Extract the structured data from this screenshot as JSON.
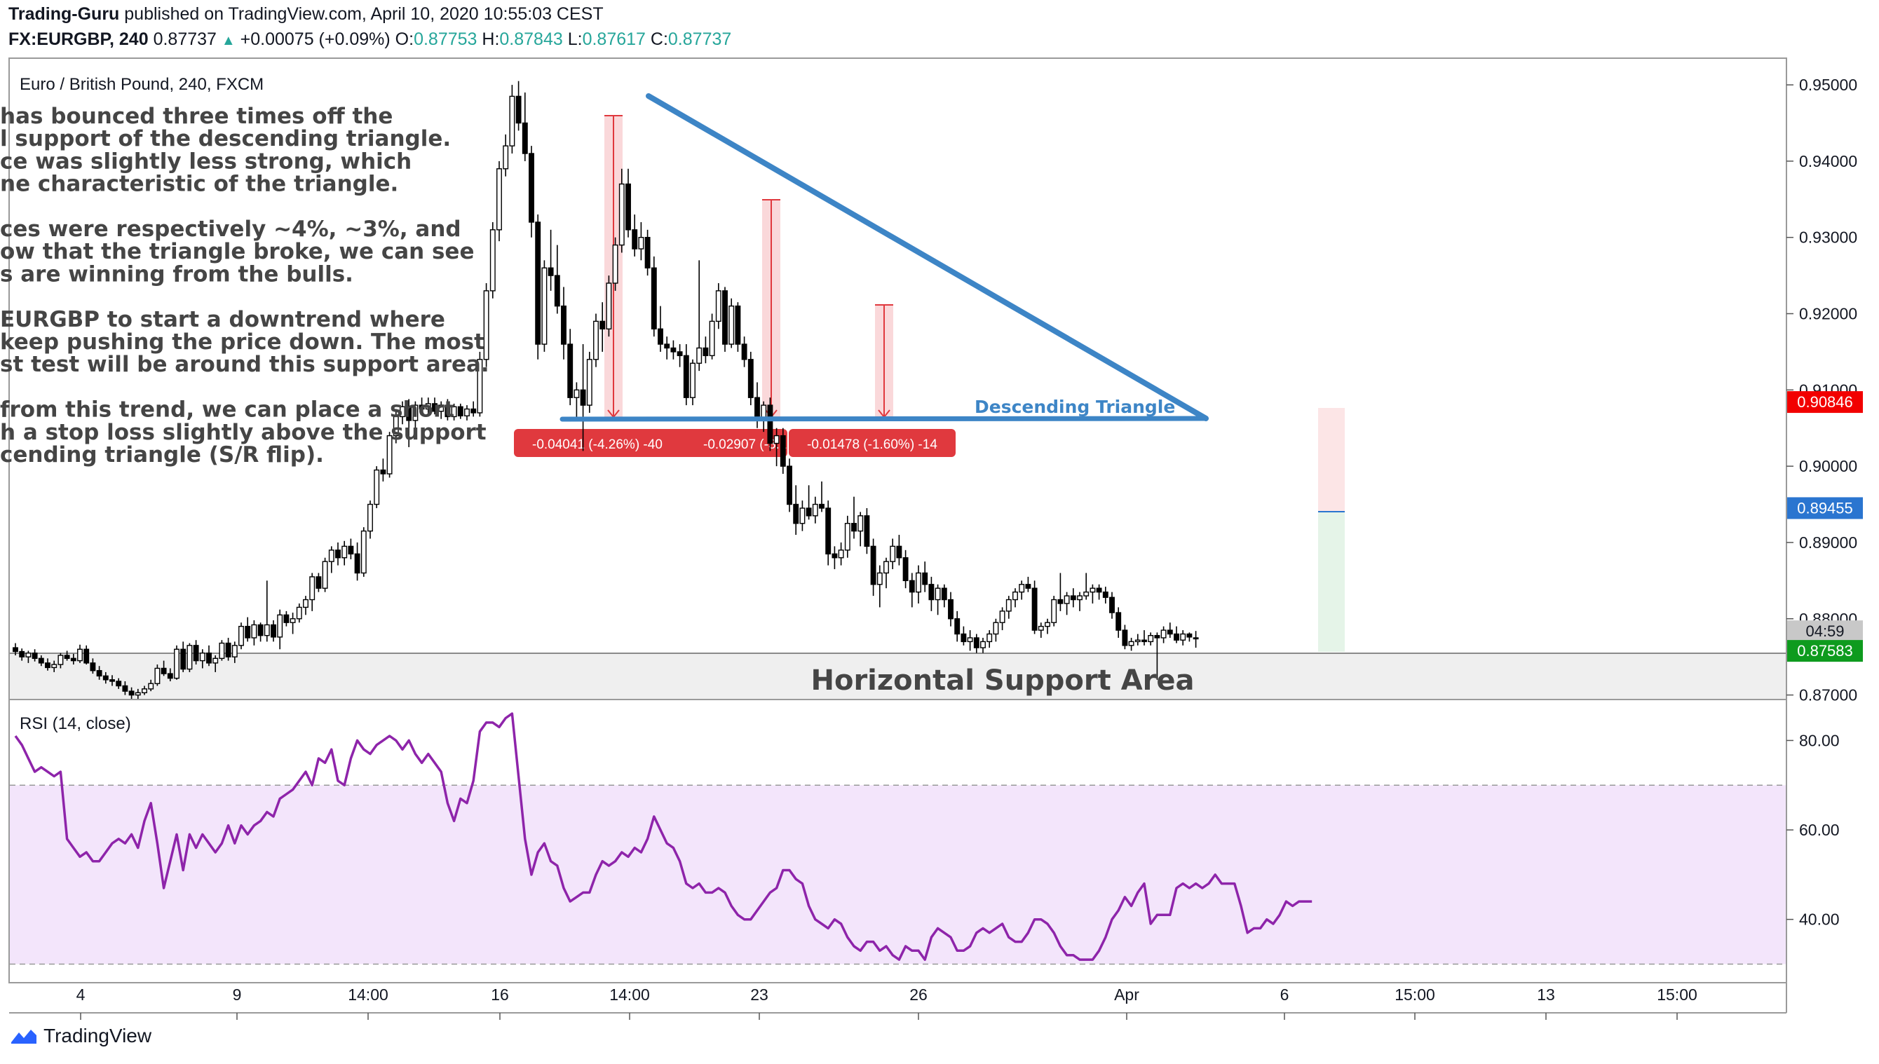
{
  "header": {
    "author": "Trading-Guru",
    "published_text": "published on TradingView.com, April 10, 2020 10:55:03 CEST",
    "symbol": "FX:EURGBP, 240",
    "last": "0.87737",
    "change": "+0.00075 (+0.09%)",
    "o_label": "O:",
    "o_value": "0.87753",
    "h_label": "H:",
    "h_value": "0.87843",
    "l_label": "L:",
    "l_value": "0.87617",
    "c_label": "C:",
    "c_value": "0.87737"
  },
  "pane_title": "Euro / British Pound, 240, FXCM",
  "rsi_title": "RSI (14, close)",
  "footer": {
    "brand": "TradingView"
  },
  "annotation_lines": [
    "has bounced three times off the",
    "l support of the descending triangle.",
    "ce was slightly less strong, which",
    "ne characteristic of the triangle.",
    "",
    "ces were respectively ~4%, ~3%, and",
    "ow that the triangle broke, we can see",
    "s are winning from the bulls.",
    "",
    "EURGBP to start a downtrend where",
    " keep pushing the price down. The most",
    "st test will be around this support area.",
    "",
    "from this trend, we can place a short",
    "h a stop loss slightly above the support",
    "cending triangle (S/R flip)."
  ],
  "drawings": {
    "triangle_label": "Descending Triangle",
    "support_label": "Horizontal Support Area",
    "measure_labels": [
      "-0.04041 (-4.26%) -40",
      "-0.02907 (-3.1",
      "-0.01478 (-1.60%) -14"
    ]
  },
  "colors": {
    "up": "#ffffff",
    "down": "#000000",
    "wick": "#000000",
    "triangle": "#3d85c6",
    "measure_red": "#e0393e",
    "rsi": "#8e24aa",
    "rsi_band": "#f3e5fb",
    "price_red": "#f20000",
    "price_blue": "#2a75d0",
    "price_green": "#0e9b1e"
  },
  "chart_data": {
    "type": "candlestick",
    "price_axis": {
      "ticks": [
        "0.95000",
        "0.94000",
        "0.93000",
        "0.92000",
        "0.91000",
        "0.90000",
        "0.89000",
        "0.88000",
        "0.87000"
      ],
      "ylim": [
        0.8695,
        0.9535
      ]
    },
    "x_ticks": [
      "4",
      "9",
      "14:00",
      "16",
      "14:00",
      "23",
      "26",
      "Apr",
      "6",
      "15:00",
      "13",
      "15:00"
    ],
    "price_labels": [
      {
        "text": "0.90846",
        "value": 0.90846,
        "color": "#f20000"
      },
      {
        "text": "0.89455",
        "value": 0.89455,
        "color": "#2a75d0"
      },
      {
        "text": "04:59",
        "value": 0.8784,
        "color": "#c8c8c8"
      },
      {
        "text": "0.87583",
        "value": 0.87583,
        "color": "#0e9b1e"
      }
    ],
    "candles": [
      [
        0.8762,
        0.8768,
        0.8752,
        0.8757
      ],
      [
        0.8757,
        0.8761,
        0.8745,
        0.875
      ],
      [
        0.875,
        0.8758,
        0.8742,
        0.8755
      ],
      [
        0.8755,
        0.876,
        0.8744,
        0.8748
      ],
      [
        0.8748,
        0.8752,
        0.8738,
        0.8742
      ],
      [
        0.8742,
        0.8748,
        0.8732,
        0.8736
      ],
      [
        0.8736,
        0.8745,
        0.873,
        0.874
      ],
      [
        0.874,
        0.8755,
        0.8735,
        0.8752
      ],
      [
        0.8752,
        0.8758,
        0.8745,
        0.8748
      ],
      [
        0.8748,
        0.8754,
        0.874,
        0.8745
      ],
      [
        0.8745,
        0.8766,
        0.8742,
        0.876
      ],
      [
        0.876,
        0.8765,
        0.874,
        0.8742
      ],
      [
        0.8742,
        0.8748,
        0.8728,
        0.8732
      ],
      [
        0.8732,
        0.8738,
        0.872,
        0.8725
      ],
      [
        0.8725,
        0.873,
        0.8715,
        0.872
      ],
      [
        0.872,
        0.8726,
        0.8712,
        0.8718
      ],
      [
        0.8718,
        0.8722,
        0.8708,
        0.8712
      ],
      [
        0.8712,
        0.8718,
        0.87,
        0.8705
      ],
      [
        0.8705,
        0.871,
        0.8695,
        0.87
      ],
      [
        0.87,
        0.8708,
        0.8692,
        0.8703
      ],
      [
        0.8703,
        0.8712,
        0.87,
        0.8708
      ],
      [
        0.8708,
        0.872,
        0.8705,
        0.8715
      ],
      [
        0.8715,
        0.874,
        0.8712,
        0.8735
      ],
      [
        0.8735,
        0.8745,
        0.8725,
        0.8728
      ],
      [
        0.8728,
        0.8735,
        0.8718,
        0.8722
      ],
      [
        0.8722,
        0.8765,
        0.872,
        0.876
      ],
      [
        0.876,
        0.877,
        0.873,
        0.8734
      ],
      [
        0.8734,
        0.8768,
        0.873,
        0.8765
      ],
      [
        0.8765,
        0.8772,
        0.874,
        0.8745
      ],
      [
        0.8745,
        0.876,
        0.8735,
        0.8755
      ],
      [
        0.8755,
        0.8765,
        0.8738,
        0.8742
      ],
      [
        0.8742,
        0.8752,
        0.873,
        0.8748
      ],
      [
        0.8748,
        0.8772,
        0.8745,
        0.8768
      ],
      [
        0.8768,
        0.8775,
        0.8745,
        0.875
      ],
      [
        0.875,
        0.877,
        0.8742,
        0.8765
      ],
      [
        0.8765,
        0.8795,
        0.876,
        0.879
      ],
      [
        0.879,
        0.8802,
        0.877,
        0.8775
      ],
      [
        0.8775,
        0.8798,
        0.8765,
        0.8792
      ],
      [
        0.8792,
        0.8795,
        0.877,
        0.8778
      ],
      [
        0.8778,
        0.885,
        0.877,
        0.8792
      ],
      [
        0.8792,
        0.8798,
        0.877,
        0.8776
      ],
      [
        0.8776,
        0.8812,
        0.876,
        0.8805
      ],
      [
        0.8805,
        0.881,
        0.879,
        0.8795
      ],
      [
        0.8795,
        0.8808,
        0.878,
        0.88
      ],
      [
        0.88,
        0.882,
        0.8795,
        0.8815
      ],
      [
        0.8815,
        0.883,
        0.8805,
        0.8825
      ],
      [
        0.8825,
        0.886,
        0.881,
        0.8855
      ],
      [
        0.8855,
        0.886,
        0.8835,
        0.884
      ],
      [
        0.884,
        0.888,
        0.8835,
        0.8875
      ],
      [
        0.8875,
        0.8895,
        0.886,
        0.889
      ],
      [
        0.889,
        0.89,
        0.887,
        0.888
      ],
      [
        0.888,
        0.8902,
        0.887,
        0.8895
      ],
      [
        0.8895,
        0.8905,
        0.8878,
        0.8885
      ],
      [
        0.8885,
        0.89,
        0.885,
        0.886
      ],
      [
        0.886,
        0.892,
        0.8855,
        0.8915
      ],
      [
        0.8915,
        0.8955,
        0.8905,
        0.895
      ],
      [
        0.895,
        0.9,
        0.8945,
        0.8995
      ],
      [
        0.8995,
        0.901,
        0.898,
        0.899
      ],
      [
        0.899,
        0.9045,
        0.8985,
        0.904
      ],
      [
        0.904,
        0.9075,
        0.903,
        0.9065
      ],
      [
        0.9065,
        0.9085,
        0.9055,
        0.9078
      ],
      [
        0.9078,
        0.9088,
        0.9025,
        0.906
      ],
      [
        0.906,
        0.9085,
        0.905,
        0.908
      ],
      [
        0.908,
        0.909,
        0.907,
        0.9075
      ],
      [
        0.9075,
        0.909,
        0.9065,
        0.9082
      ],
      [
        0.9082,
        0.909,
        0.9068,
        0.9072
      ],
      [
        0.9072,
        0.9085,
        0.9062,
        0.908
      ],
      [
        0.908,
        0.9088,
        0.906,
        0.9065
      ],
      [
        0.9065,
        0.9082,
        0.906,
        0.9078
      ],
      [
        0.9078,
        0.9082,
        0.9062,
        0.9066
      ],
      [
        0.9066,
        0.908,
        0.906,
        0.9075
      ],
      [
        0.9075,
        0.9085,
        0.9065,
        0.907
      ],
      [
        0.907,
        0.915,
        0.9065,
        0.914
      ],
      [
        0.914,
        0.924,
        0.913,
        0.923
      ],
      [
        0.923,
        0.932,
        0.922,
        0.931
      ],
      [
        0.931,
        0.94,
        0.9295,
        0.939
      ],
      [
        0.939,
        0.9435,
        0.938,
        0.942
      ],
      [
        0.942,
        0.95,
        0.941,
        0.9485
      ],
      [
        0.9485,
        0.9505,
        0.944,
        0.945
      ],
      [
        0.945,
        0.949,
        0.94,
        0.941
      ],
      [
        0.941,
        0.942,
        0.93,
        0.932
      ],
      [
        0.932,
        0.933,
        0.914,
        0.916
      ],
      [
        0.916,
        0.927,
        0.915,
        0.926
      ],
      [
        0.926,
        0.931,
        0.923,
        0.925
      ],
      [
        0.925,
        0.929,
        0.92,
        0.921
      ],
      [
        0.921,
        0.9235,
        0.914,
        0.916
      ],
      [
        0.916,
        0.918,
        0.908,
        0.909
      ],
      [
        0.909,
        0.911,
        0.906,
        0.91
      ],
      [
        0.91,
        0.916,
        0.902,
        0.908
      ],
      [
        0.908,
        0.915,
        0.907,
        0.914
      ],
      [
        0.914,
        0.92,
        0.913,
        0.919
      ],
      [
        0.919,
        0.9215,
        0.915,
        0.918
      ],
      [
        0.918,
        0.925,
        0.917,
        0.924
      ],
      [
        0.924,
        0.93,
        0.923,
        0.929
      ],
      [
        0.929,
        0.939,
        0.928,
        0.937
      ],
      [
        0.937,
        0.939,
        0.93,
        0.931
      ],
      [
        0.931,
        0.933,
        0.9275,
        0.9285
      ],
      [
        0.9285,
        0.932,
        0.927,
        0.93
      ],
      [
        0.93,
        0.931,
        0.925,
        0.926
      ],
      [
        0.926,
        0.9275,
        0.917,
        0.918
      ],
      [
        0.918,
        0.921,
        0.915,
        0.916
      ],
      [
        0.916,
        0.917,
        0.914,
        0.9155
      ],
      [
        0.9155,
        0.9165,
        0.914,
        0.915
      ],
      [
        0.915,
        0.916,
        0.913,
        0.9145
      ],
      [
        0.9145,
        0.916,
        0.908,
        0.909
      ],
      [
        0.909,
        0.914,
        0.908,
        0.9135
      ],
      [
        0.9135,
        0.927,
        0.9125,
        0.9155
      ],
      [
        0.9155,
        0.917,
        0.9135,
        0.9145
      ],
      [
        0.9145,
        0.92,
        0.914,
        0.919
      ],
      [
        0.919,
        0.924,
        0.918,
        0.923
      ],
      [
        0.923,
        0.9235,
        0.915,
        0.916
      ],
      [
        0.916,
        0.922,
        0.9155,
        0.921
      ],
      [
        0.921,
        0.9215,
        0.915,
        0.916
      ],
      [
        0.916,
        0.917,
        0.913,
        0.914
      ],
      [
        0.914,
        0.915,
        0.908,
        0.909
      ],
      [
        0.909,
        0.911,
        0.905,
        0.906
      ],
      [
        0.906,
        0.9085,
        0.9045,
        0.908
      ],
      [
        0.908,
        0.909,
        0.902,
        0.903
      ],
      [
        0.903,
        0.905,
        0.9,
        0.904
      ],
      [
        0.904,
        0.905,
        0.899,
        0.9
      ],
      [
        0.9,
        0.901,
        0.894,
        0.895
      ],
      [
        0.895,
        0.8975,
        0.891,
        0.8925
      ],
      [
        0.8925,
        0.8955,
        0.8915,
        0.8945
      ],
      [
        0.8945,
        0.8975,
        0.893,
        0.8935
      ],
      [
        0.8935,
        0.896,
        0.8925,
        0.895
      ],
      [
        0.895,
        0.898,
        0.894,
        0.8945
      ],
      [
        0.8945,
        0.8955,
        0.887,
        0.8885
      ],
      [
        0.8885,
        0.8895,
        0.8865,
        0.888
      ],
      [
        0.888,
        0.89,
        0.887,
        0.889
      ],
      [
        0.889,
        0.8935,
        0.888,
        0.8925
      ],
      [
        0.8925,
        0.896,
        0.8905,
        0.8915
      ],
      [
        0.8915,
        0.894,
        0.8895,
        0.8935
      ],
      [
        0.8935,
        0.8945,
        0.8885,
        0.8895
      ],
      [
        0.8895,
        0.8905,
        0.883,
        0.8845
      ],
      [
        0.8845,
        0.887,
        0.8815,
        0.886
      ],
      [
        0.886,
        0.888,
        0.884,
        0.8875
      ],
      [
        0.8875,
        0.8905,
        0.8865,
        0.8895
      ],
      [
        0.8895,
        0.891,
        0.887,
        0.888
      ],
      [
        0.888,
        0.889,
        0.884,
        0.885
      ],
      [
        0.885,
        0.886,
        0.8815,
        0.8835
      ],
      [
        0.8835,
        0.887,
        0.882,
        0.886
      ],
      [
        0.886,
        0.8875,
        0.8835,
        0.8845
      ],
      [
        0.8845,
        0.8855,
        0.881,
        0.8825
      ],
      [
        0.8825,
        0.8845,
        0.8805,
        0.884
      ],
      [
        0.884,
        0.8845,
        0.8815,
        0.8825
      ],
      [
        0.8825,
        0.8835,
        0.879,
        0.88
      ],
      [
        0.88,
        0.881,
        0.877,
        0.878
      ],
      [
        0.878,
        0.879,
        0.8765,
        0.877
      ],
      [
        0.877,
        0.8785,
        0.8758,
        0.8775
      ],
      [
        0.8775,
        0.878,
        0.8755,
        0.8762
      ],
      [
        0.8762,
        0.8775,
        0.8755,
        0.877
      ],
      [
        0.877,
        0.8785,
        0.8762,
        0.878
      ],
      [
        0.878,
        0.88,
        0.877,
        0.8795
      ],
      [
        0.8795,
        0.8815,
        0.8785,
        0.881
      ],
      [
        0.881,
        0.883,
        0.88,
        0.8825
      ],
      [
        0.8825,
        0.884,
        0.8815,
        0.8835
      ],
      [
        0.8835,
        0.885,
        0.8825,
        0.8845
      ],
      [
        0.8845,
        0.8855,
        0.8835,
        0.884
      ],
      [
        0.884,
        0.885,
        0.878,
        0.8785
      ],
      [
        0.8785,
        0.8795,
        0.8775,
        0.879
      ],
      [
        0.879,
        0.88,
        0.878,
        0.8795
      ],
      [
        0.8795,
        0.883,
        0.879,
        0.8825
      ],
      [
        0.8825,
        0.886,
        0.881,
        0.882
      ],
      [
        0.882,
        0.8835,
        0.8805,
        0.883
      ],
      [
        0.883,
        0.884,
        0.8815,
        0.8825
      ],
      [
        0.8825,
        0.8835,
        0.881,
        0.883
      ],
      [
        0.883,
        0.886,
        0.8825,
        0.8835
      ],
      [
        0.8835,
        0.8845,
        0.882,
        0.884
      ],
      [
        0.884,
        0.8845,
        0.8825,
        0.8835
      ],
      [
        0.8835,
        0.8842,
        0.882,
        0.8828
      ],
      [
        0.8828,
        0.8835,
        0.88,
        0.8808
      ],
      [
        0.8808,
        0.8815,
        0.8775,
        0.8785
      ],
      [
        0.8785,
        0.8792,
        0.876,
        0.8765
      ],
      [
        0.8765,
        0.8775,
        0.8758,
        0.877
      ],
      [
        0.877,
        0.878,
        0.8765,
        0.8772
      ],
      [
        0.8772,
        0.8785,
        0.8765,
        0.877
      ],
      [
        0.877,
        0.8782,
        0.8765,
        0.8778
      ],
      [
        0.8778,
        0.8782,
        0.872,
        0.8775
      ],
      [
        0.8775,
        0.879,
        0.8768,
        0.8785
      ],
      [
        0.8785,
        0.8795,
        0.8775,
        0.878
      ],
      [
        0.878,
        0.879,
        0.8768,
        0.8772
      ],
      [
        0.8772,
        0.8785,
        0.8765,
        0.878
      ],
      [
        0.878,
        0.8782,
        0.877,
        0.8776
      ],
      [
        0.8775,
        0.8784,
        0.8762,
        0.8774
      ]
    ],
    "rsi": {
      "name": "RSI (14, close)",
      "ticks": [
        "80.00",
        "60.00",
        "40.00"
      ],
      "ylim": [
        26,
        89
      ],
      "upper": 70,
      "lower": 30,
      "values": [
        81,
        79,
        76,
        73,
        74,
        73,
        72,
        73,
        58,
        56,
        54,
        55,
        53,
        53,
        55,
        57,
        58,
        57,
        59,
        56,
        62,
        66,
        57,
        47,
        53,
        59,
        51,
        59,
        56,
        59,
        57,
        55,
        57,
        61,
        57,
        61,
        59,
        61,
        62,
        64,
        63,
        67,
        68,
        69,
        71,
        73,
        70,
        76,
        75,
        78,
        71,
        70,
        76,
        80,
        78,
        77,
        79,
        80,
        81,
        80,
        78,
        80,
        77,
        75,
        77,
        75,
        73,
        66,
        62,
        67,
        66,
        71,
        82,
        84,
        84,
        83,
        85,
        86,
        72,
        58,
        50,
        55,
        57,
        53,
        52,
        47,
        44,
        45,
        46,
        46,
        50,
        53,
        52,
        53,
        55,
        54,
        56,
        55,
        58,
        63,
        60,
        57,
        56,
        53,
        48,
        47,
        48,
        46,
        46,
        47,
        46,
        43,
        41,
        40,
        40,
        42,
        44,
        46,
        47,
        51,
        51,
        49,
        48,
        43,
        40,
        39,
        38,
        40,
        39,
        36,
        34,
        33,
        35,
        35,
        33,
        34,
        32,
        31,
        34,
        33,
        33,
        31,
        36,
        38,
        37,
        36,
        33,
        33,
        34,
        37,
        38,
        37,
        38,
        39,
        36,
        35,
        35,
        37,
        40,
        40,
        39,
        37,
        34,
        32,
        32,
        31,
        31,
        31,
        33,
        36,
        40,
        42,
        45,
        43,
        46,
        48,
        39,
        41,
        41,
        41,
        47,
        48,
        47,
        48,
        47,
        48,
        50,
        48,
        48,
        48,
        43,
        37,
        38,
        38,
        40,
        39,
        41,
        44,
        43,
        44,
        44,
        44
      ]
    }
  }
}
